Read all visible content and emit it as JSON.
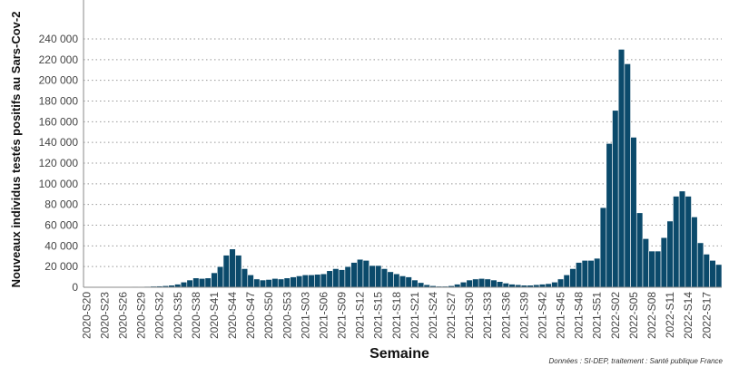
{
  "chart_data": {
    "type": "bar",
    "y_label": "Nouveaux individus testés positifs au Sars-Cov-2",
    "x_label": "Semaine",
    "source": "Données : SI-DEP, traitement : Santé publique France",
    "color": "#0b4a6b",
    "grid": true,
    "categories": [
      "2020-S20",
      null,
      null,
      "2020-S23",
      null,
      null,
      "2020-S26",
      null,
      null,
      "2020-S29",
      null,
      null,
      "2020-S32",
      null,
      null,
      "2020-S35",
      null,
      null,
      "2020-S38",
      null,
      null,
      "2020-S41",
      null,
      null,
      "2020-S44",
      null,
      null,
      "2020-S47",
      null,
      null,
      "2020-S50",
      null,
      null,
      "2020-S53",
      null,
      null,
      "2021-S03",
      null,
      null,
      "2021-S06",
      null,
      null,
      "2021-S09",
      null,
      null,
      "2021-S12",
      null,
      null,
      "2021-S15",
      null,
      null,
      "2021-S18",
      null,
      null,
      "2021-S21",
      null,
      null,
      "2021-S24",
      null,
      null,
      "2021-S27",
      null,
      null,
      "2021-S30",
      null,
      null,
      "2021-S33",
      null,
      null,
      "2021-S36",
      null,
      null,
      "2021-S39",
      null,
      null,
      "2021-S42",
      null,
      null,
      "2021-S45",
      null,
      null,
      "2021-S48",
      null,
      null,
      "2021-S51",
      null,
      null,
      "2022-S02",
      null,
      null,
      "2022-S05",
      null,
      null,
      "2022-S08",
      null,
      null,
      "2022-S11",
      null,
      null,
      "2022-S14",
      null,
      null,
      "2022-S17",
      null,
      null
    ],
    "values": [
      400,
      300,
      300,
      300,
      300,
      300,
      300,
      400,
      500,
      600,
      800,
      1000,
      1200,
      1500,
      2000,
      3000,
      5000,
      7000,
      9000,
      8500,
      9000,
      14000,
      20000,
      31000,
      37000,
      31000,
      18000,
      12000,
      8000,
      7000,
      7500,
      8500,
      8000,
      9000,
      10000,
      11000,
      12000,
      12000,
      12500,
      13000,
      16000,
      18000,
      17000,
      20000,
      24000,
      27000,
      26000,
      21000,
      21000,
      18000,
      15000,
      13000,
      11000,
      10000,
      7000,
      4500,
      2500,
      1500,
      1000,
      1000,
      1500,
      3000,
      5000,
      7000,
      8000,
      8500,
      8000,
      7000,
      5500,
      4000,
      3000,
      2500,
      2000,
      2000,
      2500,
      3000,
      3500,
      5000,
      8000,
      12000,
      18000,
      24000,
      26000,
      26000,
      28000,
      77000,
      139000,
      171000,
      230000,
      216000,
      145000,
      72000,
      47000,
      35000,
      35000,
      48000,
      64000,
      88000,
      93000,
      88000,
      68000,
      43000,
      32000,
      26000,
      22000
    ],
    "ylim": [
      0,
      240000
    ],
    "yticks": [
      0,
      {
        "value": 20000,
        "label": "20 000"
      },
      {
        "value": 40000,
        "label": "40 000"
      },
      {
        "value": 60000,
        "label": "60 000"
      },
      {
        "value": 80000,
        "label": "80 000"
      },
      {
        "value": 100000,
        "label": "100 000"
      },
      {
        "value": 120000,
        "label": "120 000"
      },
      {
        "value": 140000,
        "label": "140 000"
      },
      {
        "value": 160000,
        "label": "160 000"
      },
      {
        "value": 180000,
        "label": "180 000"
      },
      {
        "value": 200000,
        "label": "200 000"
      },
      {
        "value": 220000,
        "label": "220 000"
      },
      {
        "value": 240000,
        "label": "240 000"
      }
    ]
  }
}
